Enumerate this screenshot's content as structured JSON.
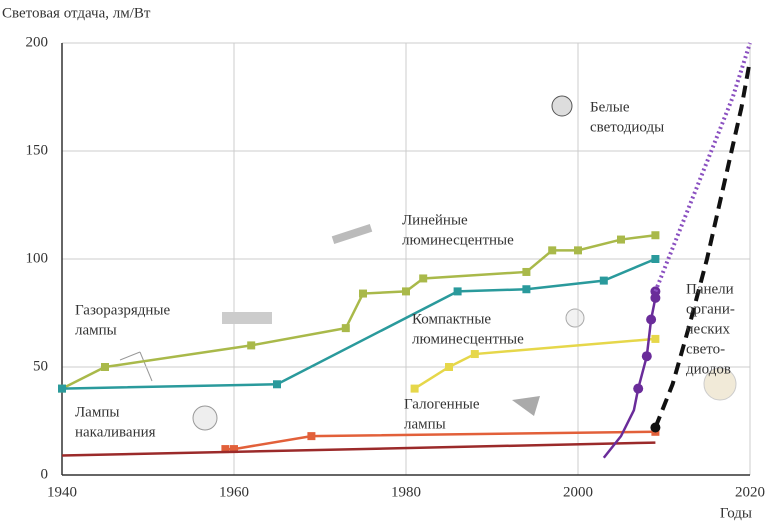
{
  "chart_data": {
    "type": "line",
    "y_label": "Световая отдача, лм/Вт",
    "x_label": "Годы",
    "xlim": [
      1940,
      2020
    ],
    "xticks": [
      1940,
      1960,
      1980,
      2000,
      2020
    ],
    "ylim": [
      0,
      200
    ],
    "yticks": [
      0,
      50,
      100,
      150,
      200
    ],
    "grid": true,
    "series": [
      {
        "color": "#a9b94a",
        "style": "solid",
        "markers": true,
        "x": [
          1940,
          1945,
          1962,
          1973,
          1975,
          1980,
          1982,
          1994,
          1997,
          2000,
          2005,
          2009
        ],
        "values": [
          40,
          50,
          60,
          68,
          84,
          85,
          91,
          94,
          104,
          104,
          109,
          111
        ]
      },
      {
        "color": "#2a9a9c",
        "style": "solid",
        "markers": true,
        "x": [
          1940,
          1965,
          1986,
          1994,
          2003,
          2009
        ],
        "values": [
          40,
          42,
          85,
          86,
          90,
          100
        ]
      },
      {
        "color": "#e6d74a",
        "style": "solid",
        "markers": true,
        "x": [
          1981,
          1985,
          1988,
          2009
        ],
        "values": [
          40,
          50,
          56,
          63
        ]
      },
      {
        "color": "#e2603a",
        "style": "solid",
        "markers": true,
        "x": [
          1959,
          1960,
          1969,
          2009
        ],
        "values": [
          12,
          12,
          18,
          20
        ]
      },
      {
        "color": "#9b2a2a",
        "style": "solid",
        "markers": false,
        "x": [
          1940,
          2009
        ],
        "values": [
          9,
          15
        ]
      },
      {
        "color": "#6a2c9a",
        "style": "solid",
        "markers": true,
        "x": [
          2007,
          2008,
          2008.5,
          2009,
          2009
        ],
        "values": [
          40,
          55,
          72,
          82,
          85
        ]
      },
      {
        "color": "#6a2c9a",
        "style": "solid",
        "markers": false,
        "x": [
          2003,
          2005,
          2006.5,
          2007
        ],
        "values": [
          8,
          18,
          30,
          40
        ]
      },
      {
        "color": "#8a50c0",
        "style": "dotted",
        "markers": false,
        "x": [
          2009,
          2012,
          2015,
          2018,
          2020
        ],
        "values": [
          85,
          115,
          145,
          175,
          200
        ]
      },
      {
        "color": "#111111",
        "style": "dashed",
        "markers": true,
        "x": [
          2009
        ],
        "values": [
          22
        ]
      },
      {
        "color": "#111111",
        "style": "dashed",
        "markers": false,
        "x": [
          2009,
          2011,
          2013,
          2015,
          2017,
          2019,
          2020
        ],
        "values": [
          22,
          42,
          70,
          100,
          135,
          170,
          192
        ]
      }
    ],
    "annotations": [
      {
        "lines": [
          "Газоразрядные",
          "лампы"
        ]
      },
      {
        "lines": [
          "Линейные",
          "люминесцентные"
        ]
      },
      {
        "lines": [
          "Компактные",
          "люминесцентные"
        ]
      },
      {
        "lines": [
          "Галогенные",
          "лампы"
        ]
      },
      {
        "lines": [
          "Лампы",
          "накаливания"
        ]
      },
      {
        "lines": [
          "Белые",
          "светодиоды"
        ]
      },
      {
        "lines": [
          "Панели",
          "органи-",
          "ческих",
          "свето-",
          "диодов"
        ]
      }
    ]
  }
}
